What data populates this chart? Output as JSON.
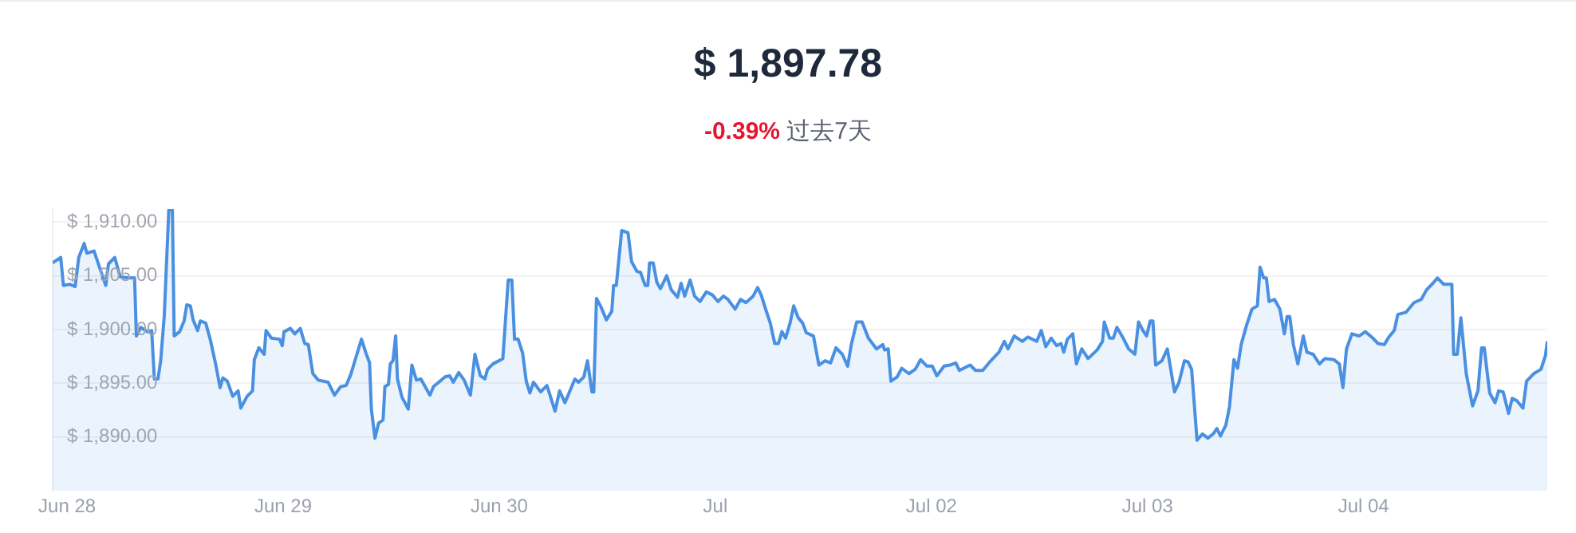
{
  "chart_data": {
    "type": "area",
    "title": "$ 1,897.78",
    "subtitle": "-0.39% 过去7天",
    "x": [
      "--06-27T22:24",
      "--06-27T23:18",
      "--06-27T23:36",
      "--06-28T00:18",
      "--06-28T00:54",
      "--06-28T01:18",
      "--06-28T01:54",
      "--06-28T02:12",
      "--06-28T03:00",
      "--06-28T03:36",
      "--06-28T04:18",
      "--06-28T04:36",
      "--06-28T05:18",
      "--06-28T05:54",
      "--06-28T06:48",
      "--06-28T07:30",
      "--06-28T07:42",
      "--06-28T08:12",
      "--06-28T08:54",
      "--06-28T09:24",
      "--06-28T09:42",
      "--06-28T10:06",
      "--06-28T10:24",
      "--06-28T10:48",
      "--06-28T11:18",
      "--06-28T11:42",
      "--06-28T11:54",
      "--06-28T12:30",
      "--06-28T13:00",
      "--06-28T13:18",
      "--06-28T13:42",
      "--06-28T14:00",
      "--06-28T14:30",
      "--06-28T14:48",
      "--06-28T15:24",
      "--06-28T15:54",
      "--06-28T16:30",
      "--06-28T17:00",
      "--06-28T17:18",
      "--06-28T17:48",
      "--06-28T18:24",
      "--06-28T19:00",
      "--06-28T19:18",
      "--06-28T20:00",
      "--06-28T20:36",
      "--06-28T20:48",
      "--06-28T21:18",
      "--06-28T21:54",
      "--06-28T22:06",
      "--06-28T22:42",
      "--06-28T23:36",
      "--06-28T23:54",
      "--06-29T00:06",
      "--06-29T00:48",
      "--06-29T01:18",
      "--06-29T01:54",
      "--06-29T02:24",
      "--06-29T02:48",
      "--06-29T03:18",
      "--06-29T03:54",
      "--06-29T05:00",
      "--06-29T05:42",
      "--06-29T06:24",
      "--06-29T07:00",
      "--06-29T07:30",
      "--06-29T07:54",
      "--06-29T08:42",
      "--06-29T09:12",
      "--06-29T09:36",
      "--06-29T09:48",
      "--06-29T10:12",
      "--06-29T10:36",
      "--06-29T11:06",
      "--06-29T11:18",
      "--06-29T11:42",
      "--06-29T11:54",
      "--06-29T12:12",
      "--06-29T12:30",
      "--06-29T12:42",
      "--06-29T13:12",
      "--06-29T13:54",
      "--06-29T14:18",
      "--06-29T14:48",
      "--06-29T15:18",
      "--06-29T16:18",
      "--06-29T16:42",
      "--06-29T18:00",
      "--06-29T18:30",
      "--06-29T18:54",
      "--06-29T19:30",
      "--06-29T20:06",
      "--06-29T20:48",
      "--06-29T21:18",
      "--06-29T21:54",
      "--06-29T22:24",
      "--06-29T22:42",
      "--06-29T23:18",
      "--06-30T00:24",
      "--06-30T01:00",
      "--06-30T01:24",
      "--06-30T01:42",
      "--06-30T02:06",
      "--06-30T02:36",
      "--06-30T03:00",
      "--06-30T03:24",
      "--06-30T03:48",
      "--06-30T04:36",
      "--06-30T05:18",
      "--06-30T06:12",
      "--06-30T06:42",
      "--06-30T07:18",
      "--06-30T07:48",
      "--06-30T08:24",
      "--06-30T08:48",
      "--06-30T09:24",
      "--06-30T09:48",
      "--06-30T10:18",
      "--06-30T10:30",
      "--06-30T10:48",
      "--06-30T11:18",
      "--06-30T11:54",
      "--06-30T12:30",
      "--06-30T12:42",
      "--06-30T13:00",
      "--06-30T13:36",
      "--06-30T14:18",
      "--06-30T14:42",
      "--06-30T15:18",
      "--06-30T15:42",
      "--06-30T16:12",
      "--06-30T16:30",
      "--06-30T16:42",
      "--06-30T17:06",
      "--06-30T17:30",
      "--06-30T17:54",
      "--06-30T18:36",
      "--06-30T19:06",
      "--06-30T19:48",
      "--06-30T20:12",
      "--06-30T20:36",
      "--06-30T21:12",
      "--06-30T21:42",
      "--06-30T22:18",
      "--06-30T23:00",
      "--06-30T23:42",
      "--07-01T00:18",
      "--07-01T00:54",
      "--07-01T01:24",
      "--07-01T02:12",
      "--07-01T02:48",
      "--07-01T03:24",
      "--07-01T04:12",
      "--07-01T04:42",
      "--07-01T05:06",
      "--07-01T05:42",
      "--07-01T06:06",
      "--07-01T06:36",
      "--07-01T07:00",
      "--07-01T07:24",
      "--07-01T07:48",
      "--07-01T08:18",
      "--07-01T08:42",
      "--07-01T09:12",
      "--07-01T09:42",
      "--07-01T10:06",
      "--07-01T10:54",
      "--07-01T11:30",
      "--07-01T12:12",
      "--07-01T12:48",
      "--07-01T13:24",
      "--07-01T14:06",
      "--07-01T14:42",
      "--07-01T15:06",
      "--07-01T15:42",
      "--07-01T16:18",
      "--07-01T17:00",
      "--07-01T17:54",
      "--07-01T18:36",
      "--07-01T18:48",
      "--07-01T19:12",
      "--07-01T19:30",
      "--07-01T20:12",
      "--07-01T20:42",
      "--07-01T21:30",
      "--07-01T22:12",
      "--07-01T22:48",
      "--07-01T23:30",
      "--07-02T00:06",
      "--07-02T00:36",
      "--07-02T01:24",
      "--07-02T02:06",
      "--07-02T02:42",
      "--07-02T03:06",
      "--07-02T04:18",
      "--07-02T04:54",
      "--07-02T05:42",
      "--07-02T06:36",
      "--07-02T07:30",
      "--07-02T08:06",
      "--07-02T08:30",
      "--07-02T09:12",
      "--07-02T10:06",
      "--07-02T10:42",
      "--07-02T11:42",
      "--07-02T12:12",
      "--07-02T12:42",
      "--07-02T13:18",
      "--07-02T13:54",
      "--07-02T14:24",
      "--07-02T14:42",
      "--07-02T15:06",
      "--07-02T15:42",
      "--07-02T16:06",
      "--07-02T16:42",
      "--07-02T17:24",
      "--07-02T18:24",
      "--07-02T19:00",
      "--07-02T19:12",
      "--07-02T19:48",
      "--07-02T20:12",
      "--07-02T20:36",
      "--07-02T21:18",
      "--07-02T21:54",
      "--07-02T22:36",
      "--07-02T23:00",
      "--07-02T23:30",
      "--07-02T23:54",
      "--07-03T00:18",
      "--07-03T00:36",
      "--07-03T00:54",
      "--07-03T01:36",
      "--07-03T02:12",
      "--07-03T03:00",
      "--07-03T03:30",
      "--07-03T04:06",
      "--07-03T04:30",
      "--07-03T04:54",
      "--07-03T05:30",
      "--07-03T06:06",
      "--07-03T06:42",
      "--07-03T07:18",
      "--07-03T07:42",
      "--07-03T08:06",
      "--07-03T08:42",
      "--07-03T09:06",
      "--07-03T09:36",
      "--07-03T10:00",
      "--07-03T10:24",
      "--07-03T11:00",
      "--07-03T11:36",
      "--07-03T12:12",
      "--07-03T12:30",
      "--07-03T12:54",
      "--07-03T13:12",
      "--07-03T13:30",
      "--07-03T14:06",
      "--07-03T14:42",
      "--07-03T15:12",
      "--07-03T15:30",
      "--07-03T15:48",
      "--07-03T16:12",
      "--07-03T16:42",
      "--07-03T17:18",
      "--07-03T17:42",
      "--07-03T18:24",
      "--07-03T19:06",
      "--07-03T19:42",
      "--07-03T20:42",
      "--07-03T21:18",
      "--07-03T21:42",
      "--07-03T22:06",
      "--07-03T22:42",
      "--07-03T23:30",
      "--07-04T00:12",
      "--07-04T00:54",
      "--07-04T01:36",
      "--07-04T02:18",
      "--07-04T02:48",
      "--07-04T03:24",
      "--07-04T03:48",
      "--07-04T04:42",
      "--07-04T05:36",
      "--07-04T06:24",
      "--07-04T07:00",
      "--07-04T07:42",
      "--07-04T08:12",
      "--07-04T08:54",
      "--07-04T09:48",
      "--07-04T10:00",
      "--07-04T10:24",
      "--07-04T10:48",
      "--07-04T11:24",
      "--07-04T12:06",
      "--07-04T12:42",
      "--07-04T13:06",
      "--07-04T13:24",
      "--07-04T14:00",
      "--07-04T14:36",
      "--07-04T15:00",
      "--07-04T15:30",
      "--07-04T16:06",
      "--07-04T16:30",
      "--07-04T17:00",
      "--07-04T17:42",
      "--07-04T18:06",
      "--07-04T18:54",
      "--07-04T19:42",
      "--07-04T20:12",
      "--07-04T20:24"
    ],
    "series": [
      {
        "color": "#4a90e2",
        "values": [
          1906.2,
          1906.7,
          1904.1,
          1904.2,
          1904.0,
          1906.7,
          1908.0,
          1907.1,
          1907.3,
          1905.8,
          1904.1,
          1906.1,
          1906.7,
          1904.9,
          1904.8,
          1904.8,
          1899.4,
          1900.2,
          1899.8,
          1899.9,
          1895.4,
          1895.4,
          1897.1,
          1901.3,
          1911.1,
          1911.1,
          1899.4,
          1899.8,
          1900.8,
          1902.3,
          1902.2,
          1900.9,
          1899.9,
          1900.8,
          1900.6,
          1899.1,
          1896.8,
          1894.6,
          1895.5,
          1895.2,
          1893.8,
          1894.3,
          1892.7,
          1893.8,
          1894.3,
          1897.2,
          1898.3,
          1897.7,
          1899.9,
          1899.2,
          1899.1,
          1898.5,
          1899.8,
          1900.1,
          1899.6,
          1900.1,
          1898.7,
          1898.6,
          1895.9,
          1895.3,
          1895.1,
          1893.9,
          1894.7,
          1894.8,
          1895.8,
          1896.9,
          1899.1,
          1897.8,
          1896.9,
          1892.6,
          1889.9,
          1891.3,
          1891.6,
          1894.7,
          1894.9,
          1896.8,
          1897.1,
          1899.4,
          1895.4,
          1893.7,
          1892.6,
          1896.7,
          1895.3,
          1895.4,
          1893.9,
          1894.7,
          1895.6,
          1895.7,
          1895.1,
          1896.0,
          1895.3,
          1893.9,
          1897.7,
          1895.7,
          1895.4,
          1896.3,
          1896.8,
          1897.3,
          1904.6,
          1904.6,
          1899.1,
          1899.1,
          1897.8,
          1895.2,
          1894.1,
          1895.1,
          1894.2,
          1894.8,
          1892.4,
          1894.3,
          1893.2,
          1894.2,
          1895.4,
          1895.1,
          1895.6,
          1897.1,
          1894.2,
          1894.2,
          1902.9,
          1902.1,
          1900.9,
          1901.7,
          1904.1,
          1904.1,
          1909.2,
          1909.0,
          1906.3,
          1905.4,
          1905.3,
          1904.1,
          1904.1,
          1906.2,
          1906.2,
          1904.4,
          1903.8,
          1905.0,
          1903.7,
          1903.0,
          1904.3,
          1903.1,
          1904.6,
          1903.1,
          1902.6,
          1903.5,
          1903.2,
          1902.6,
          1903.1,
          1902.8,
          1901.9,
          1902.8,
          1902.5,
          1903.1,
          1903.9,
          1903.2,
          1901.6,
          1900.6,
          1898.7,
          1898.7,
          1899.8,
          1899.2,
          1900.6,
          1902.2,
          1901.1,
          1900.6,
          1899.7,
          1899.4,
          1896.7,
          1897.1,
          1896.9,
          1898.3,
          1897.7,
          1896.6,
          1898.6,
          1900.7,
          1900.7,
          1899.2,
          1898.2,
          1898.6,
          1898.1,
          1898.2,
          1895.2,
          1895.6,
          1896.4,
          1895.9,
          1896.3,
          1897.2,
          1896.6,
          1896.6,
          1895.7,
          1896.6,
          1896.7,
          1896.9,
          1896.2,
          1896.7,
          1896.2,
          1896.2,
          1897.1,
          1897.9,
          1898.9,
          1898.2,
          1899.4,
          1898.9,
          1899.3,
          1898.9,
          1899.9,
          1898.4,
          1899.2,
          1898.5,
          1898.7,
          1897.9,
          1899.1,
          1899.6,
          1896.8,
          1898.2,
          1897.3,
          1898.1,
          1898.9,
          1900.7,
          1899.2,
          1899.2,
          1900.2,
          1899.2,
          1898.2,
          1897.7,
          1900.7,
          1899.9,
          1899.4,
          1900.8,
          1900.8,
          1896.7,
          1897.1,
          1898.2,
          1894.2,
          1895.1,
          1897.1,
          1897.0,
          1896.3,
          1889.7,
          1890.3,
          1889.9,
          1890.3,
          1890.8,
          1890.1,
          1891.1,
          1892.8,
          1897.2,
          1896.4,
          1898.6,
          1900.4,
          1901.9,
          1902.2,
          1905.8,
          1904.8,
          1904.8,
          1902.6,
          1902.8,
          1901.9,
          1899.6,
          1901.2,
          1901.2,
          1898.6,
          1896.8,
          1899.4,
          1897.9,
          1897.7,
          1896.8,
          1897.3,
          1897.2,
          1896.8,
          1894.6,
          1898.2,
          1899.6,
          1899.4,
          1899.8,
          1899.3,
          1898.7,
          1898.6,
          1899.3,
          1899.9,
          1901.4,
          1901.6,
          1902.5,
          1902.8,
          1903.7,
          1904.3,
          1904.8,
          1904.2,
          1904.2,
          1897.7,
          1897.7,
          1901.1,
          1895.9,
          1892.9,
          1894.3,
          1898.3,
          1898.3,
          1894.1,
          1893.2,
          1894.3,
          1894.2,
          1892.2,
          1893.6,
          1893.4,
          1892.7,
          1895.2,
          1895.9,
          1896.3,
          1897.6,
          1898.9
        ]
      }
    ],
    "xlim": [
      "--06-27T22:24",
      "--07-04T20:24"
    ],
    "xticks": [
      {
        "value": "--06-28",
        "label": "Jun 28"
      },
      {
        "value": "--06-29",
        "label": "Jun 29"
      },
      {
        "value": "--06-30",
        "label": "Jun 30"
      },
      {
        "value": "--07-01",
        "label": "Jul"
      },
      {
        "value": "--07-02",
        "label": "Jul 02"
      },
      {
        "value": "--07-03",
        "label": "Jul 03"
      },
      {
        "value": "--07-04",
        "label": "Jul 04"
      }
    ],
    "ylim": [
      1885,
      1911.2
    ],
    "yticks": [
      {
        "value": 1890,
        "label": "$ 1,890.00"
      },
      {
        "value": 1895,
        "label": "$ 1,895.00"
      },
      {
        "value": 1900,
        "label": "$ 1,900.00"
      },
      {
        "value": 1905,
        "label": "$ 1,905.00"
      },
      {
        "value": 1910,
        "label": "$ 1,910.00"
      }
    ],
    "grid": "y",
    "legend": false,
    "marker": "none",
    "line_style": "solid"
  }
}
